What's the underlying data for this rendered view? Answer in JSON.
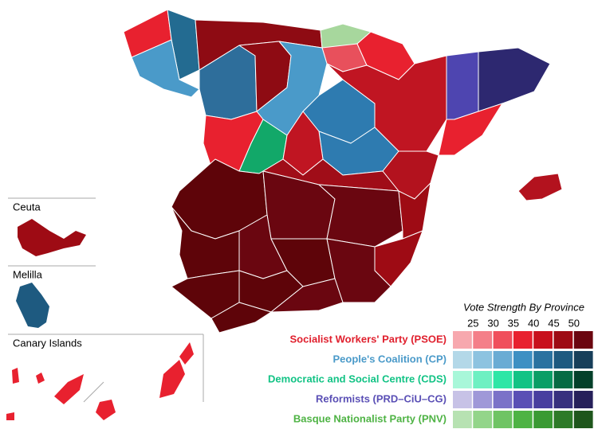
{
  "map": {
    "insets": [
      "Ceuta",
      "Melilla",
      "Canary Islands"
    ],
    "legend": {
      "title": "Vote Strength By Province",
      "thresholds": [
        25,
        30,
        35,
        40,
        45,
        50
      ],
      "parties": [
        {
          "name": "Socialist Workers' Party (PSOE)",
          "color": "#e0202e",
          "shades": [
            "#f7a8ae",
            "#f47f89",
            "#f04f5c",
            "#e8212f",
            "#c8101c",
            "#9e0b14",
            "#6b0610"
          ]
        },
        {
          "name": "People's Coalition (CP)",
          "color": "#4a9ac9",
          "shades": [
            "#b3d8e8",
            "#8dc3e0",
            "#6aacd4",
            "#3d90c3",
            "#2a72a0",
            "#1e5a80",
            "#173f5a"
          ]
        },
        {
          "name": "Democratic and Social Centre (CDS)",
          "color": "#12c385",
          "shades": [
            "#a8f7d9",
            "#6ef0c2",
            "#2ee6a6",
            "#12c385",
            "#0a9e66",
            "#066b44",
            "#03402a"
          ]
        },
        {
          "name": "Reformists (PRD–CiU–CG)",
          "color": "#5a4fb5",
          "shades": [
            "#c7c2e6",
            "#9f98d8",
            "#7b72c8",
            "#5a4fb5",
            "#483e9f",
            "#37307e",
            "#26205a"
          ]
        },
        {
          "name": "Basque Nationalist Party (PNV)",
          "color": "#4eb344",
          "shades": [
            "#b7e2b2",
            "#93d58a",
            "#6fc464",
            "#4eb344",
            "#3a9a33",
            "#2d7a28",
            "#1e561c"
          ]
        }
      ]
    }
  }
}
